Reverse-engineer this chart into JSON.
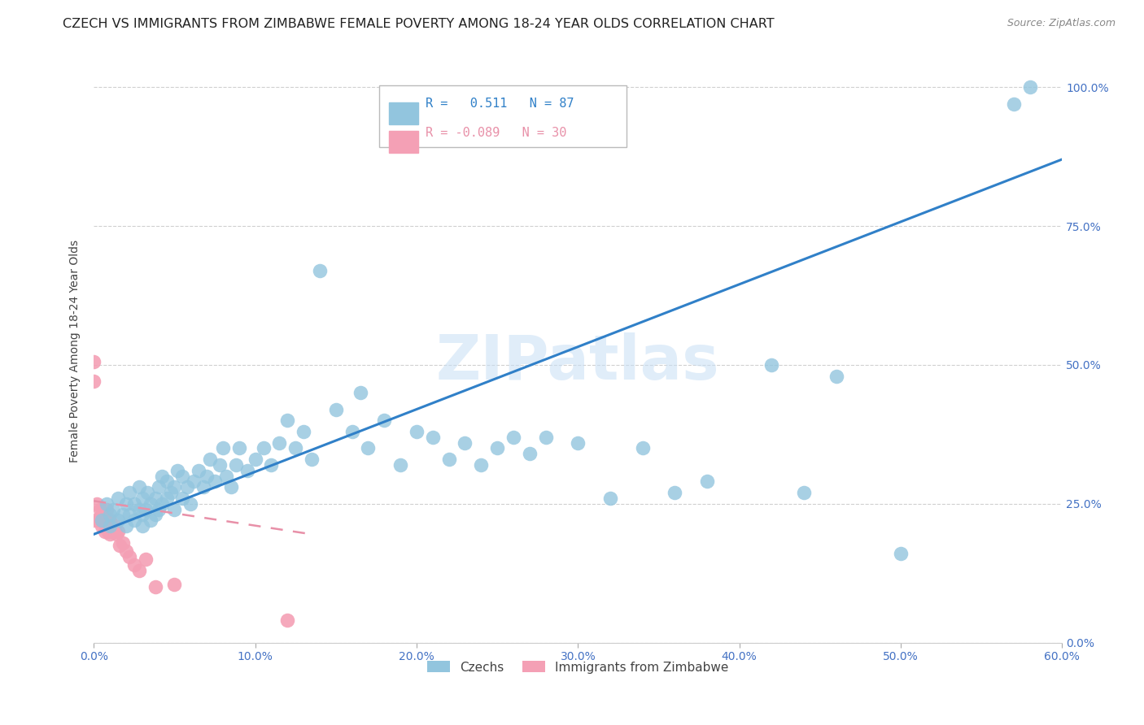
{
  "title": "CZECH VS IMMIGRANTS FROM ZIMBABWE FEMALE POVERTY AMONG 18-24 YEAR OLDS CORRELATION CHART",
  "source": "Source: ZipAtlas.com",
  "xlabel_ticks": [
    "0.0%",
    "",
    "10.0%",
    "",
    "20.0%",
    "",
    "30.0%",
    "",
    "40.0%",
    "",
    "50.0%",
    "",
    "60.0%"
  ],
  "xlabel_vals": [
    0.0,
    0.05,
    0.1,
    0.15,
    0.2,
    0.25,
    0.3,
    0.35,
    0.4,
    0.45,
    0.5,
    0.55,
    0.6
  ],
  "xlabel_major_ticks": [
    "0.0%",
    "10.0%",
    "20.0%",
    "30.0%",
    "40.0%",
    "50.0%",
    "60.0%"
  ],
  "xlabel_major_vals": [
    0.0,
    0.1,
    0.2,
    0.3,
    0.4,
    0.5,
    0.6
  ],
  "ylabel": "Female Poverty Among 18-24 Year Olds",
  "ylabel_ticks": [
    "100.0%",
    "75.0%",
    "50.0%",
    "25.0%",
    "0.0%"
  ],
  "ylabel_vals": [
    1.0,
    0.75,
    0.5,
    0.25,
    0.0
  ],
  "xlim": [
    0.0,
    0.6
  ],
  "ylim": [
    0.0,
    1.05
  ],
  "legend1_label": "Czechs",
  "legend2_label": "Immigrants from Zimbabwe",
  "R_czech": 0.511,
  "N_czech": 87,
  "R_zimbabwe": -0.089,
  "N_zimbabwe": 30,
  "czech_color": "#92c5de",
  "zimbabwe_color": "#f4a0b5",
  "czech_line_color": "#3080c8",
  "zimbabwe_line_color": "#e890a8",
  "watermark": "ZIPatlas",
  "background_color": "#ffffff",
  "grid_color": "#d0d0d0",
  "title_fontsize": 11.5,
  "axis_label_fontsize": 10,
  "tick_fontsize": 10,
  "tick_color": "#4472c4",
  "czech_x": [
    0.005,
    0.008,
    0.01,
    0.01,
    0.012,
    0.015,
    0.015,
    0.018,
    0.02,
    0.02,
    0.022,
    0.022,
    0.025,
    0.025,
    0.028,
    0.028,
    0.03,
    0.03,
    0.03,
    0.032,
    0.033,
    0.035,
    0.035,
    0.038,
    0.038,
    0.04,
    0.04,
    0.042,
    0.042,
    0.045,
    0.045,
    0.048,
    0.05,
    0.05,
    0.052,
    0.055,
    0.055,
    0.058,
    0.06,
    0.062,
    0.065,
    0.068,
    0.07,
    0.072,
    0.075,
    0.078,
    0.08,
    0.082,
    0.085,
    0.088,
    0.09,
    0.095,
    0.1,
    0.105,
    0.11,
    0.115,
    0.12,
    0.125,
    0.13,
    0.135,
    0.14,
    0.15,
    0.16,
    0.165,
    0.17,
    0.18,
    0.19,
    0.2,
    0.21,
    0.22,
    0.23,
    0.24,
    0.25,
    0.26,
    0.27,
    0.28,
    0.3,
    0.32,
    0.34,
    0.36,
    0.38,
    0.42,
    0.44,
    0.46,
    0.5,
    0.57,
    0.58
  ],
  "czech_y": [
    0.22,
    0.25,
    0.21,
    0.23,
    0.24,
    0.22,
    0.26,
    0.23,
    0.21,
    0.25,
    0.23,
    0.27,
    0.22,
    0.25,
    0.24,
    0.28,
    0.21,
    0.23,
    0.26,
    0.24,
    0.27,
    0.22,
    0.25,
    0.23,
    0.26,
    0.24,
    0.28,
    0.25,
    0.3,
    0.26,
    0.29,
    0.27,
    0.24,
    0.28,
    0.31,
    0.26,
    0.3,
    0.28,
    0.25,
    0.29,
    0.31,
    0.28,
    0.3,
    0.33,
    0.29,
    0.32,
    0.35,
    0.3,
    0.28,
    0.32,
    0.35,
    0.31,
    0.33,
    0.35,
    0.32,
    0.36,
    0.4,
    0.35,
    0.38,
    0.33,
    0.67,
    0.42,
    0.38,
    0.45,
    0.35,
    0.4,
    0.32,
    0.38,
    0.37,
    0.33,
    0.36,
    0.32,
    0.35,
    0.37,
    0.34,
    0.37,
    0.36,
    0.26,
    0.35,
    0.27,
    0.29,
    0.5,
    0.27,
    0.48,
    0.16,
    0.97,
    1.0
  ],
  "zimbabwe_x": [
    0.0,
    0.0,
    0.0,
    0.002,
    0.003,
    0.004,
    0.005,
    0.005,
    0.006,
    0.007,
    0.008,
    0.008,
    0.009,
    0.01,
    0.01,
    0.011,
    0.012,
    0.013,
    0.014,
    0.015,
    0.016,
    0.018,
    0.02,
    0.022,
    0.025,
    0.028,
    0.032,
    0.038,
    0.05,
    0.12
  ],
  "zimbabwe_y": [
    0.22,
    0.47,
    0.505,
    0.25,
    0.22,
    0.24,
    0.21,
    0.23,
    0.22,
    0.2,
    0.24,
    0.22,
    0.2,
    0.22,
    0.195,
    0.21,
    0.2,
    0.21,
    0.195,
    0.2,
    0.175,
    0.18,
    0.165,
    0.155,
    0.14,
    0.13,
    0.15,
    0.1,
    0.105,
    0.04
  ],
  "czech_line_x0": 0.0,
  "czech_line_y0": 0.195,
  "czech_line_x1": 0.6,
  "czech_line_y1": 0.87,
  "zim_line_x0": 0.0,
  "zim_line_y0": 0.255,
  "zim_line_x1": 0.135,
  "zim_line_y1": 0.195
}
